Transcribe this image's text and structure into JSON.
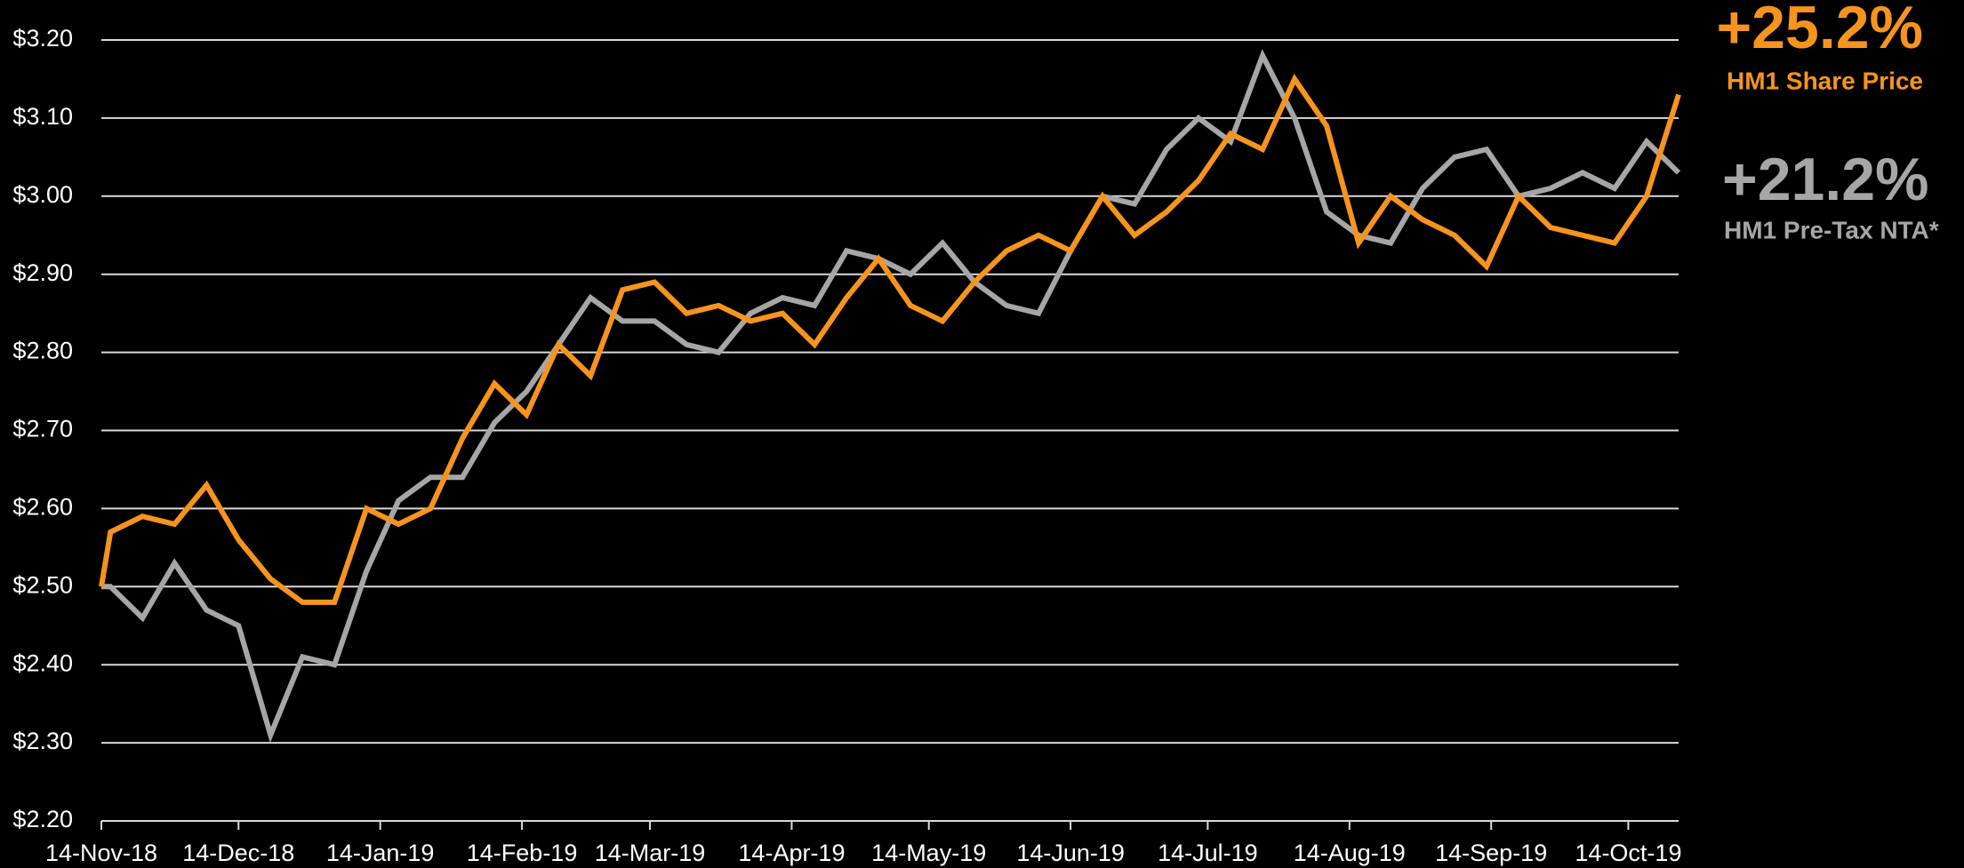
{
  "chart_data": {
    "type": "line",
    "x": [
      "2018-11-14",
      "2018-11-16",
      "2018-11-23",
      "2018-11-30",
      "2018-12-07",
      "2018-12-14",
      "2018-12-21",
      "2018-12-28",
      "2019-01-04",
      "2019-01-11",
      "2019-01-18",
      "2019-01-25",
      "2019-02-01",
      "2019-02-08",
      "2019-02-15",
      "2019-02-22",
      "2019-03-01",
      "2019-03-08",
      "2019-03-15",
      "2019-03-22",
      "2019-03-29",
      "2019-04-05",
      "2019-04-12",
      "2019-04-19",
      "2019-04-26",
      "2019-05-03",
      "2019-05-10",
      "2019-05-17",
      "2019-05-24",
      "2019-05-31",
      "2019-06-07",
      "2019-06-14",
      "2019-06-21",
      "2019-06-28",
      "2019-07-05",
      "2019-07-12",
      "2019-07-19",
      "2019-07-26",
      "2019-08-02",
      "2019-08-09",
      "2019-08-16",
      "2019-08-23",
      "2019-08-30",
      "2019-09-06",
      "2019-09-13",
      "2019-09-20",
      "2019-09-27",
      "2019-10-04",
      "2019-10-11",
      "2019-10-18",
      "2019-10-25"
    ],
    "series": [
      {
        "name": "HM1 Share Price",
        "change": "+25.2%",
        "color": "#f7941d",
        "values": [
          2.5,
          2.57,
          2.59,
          2.58,
          2.63,
          2.56,
          2.51,
          2.48,
          2.48,
          2.6,
          2.58,
          2.6,
          2.69,
          2.76,
          2.72,
          2.81,
          2.77,
          2.88,
          2.89,
          2.85,
          2.86,
          2.84,
          2.85,
          2.81,
          2.87,
          2.92,
          2.86,
          2.84,
          2.89,
          2.93,
          2.95,
          2.93,
          3.0,
          2.95,
          2.98,
          3.02,
          3.08,
          3.06,
          3.15,
          3.09,
          2.94,
          3.0,
          2.97,
          2.95,
          2.91,
          3.0,
          2.96,
          2.95,
          2.94,
          3.0,
          3.13
        ]
      },
      {
        "name": "HM1 Pre-Tax NTA*",
        "change": "+21.2%",
        "color": "#a6a6a6",
        "values": [
          2.5,
          2.5,
          2.46,
          2.53,
          2.47,
          2.45,
          2.31,
          2.41,
          2.4,
          2.52,
          2.61,
          2.64,
          2.64,
          2.71,
          2.75,
          2.81,
          2.87,
          2.84,
          2.84,
          2.81,
          2.8,
          2.85,
          2.87,
          2.86,
          2.93,
          2.92,
          2.9,
          2.94,
          2.89,
          2.86,
          2.85,
          2.93,
          3.0,
          2.99,
          3.06,
          3.1,
          3.07,
          3.18,
          3.1,
          2.98,
          2.95,
          2.94,
          3.01,
          3.05,
          3.06,
          3.0,
          3.01,
          3.03,
          3.01,
          3.07,
          3.03
        ]
      }
    ],
    "xlim": [
      "2018-11-14",
      "2019-10-25"
    ],
    "xticks": [
      {
        "value": "2018-11-14",
        "label": "14-Nov-18"
      },
      {
        "value": "2018-12-14",
        "label": "14-Dec-18"
      },
      {
        "value": "2019-01-14",
        "label": "14-Jan-19"
      },
      {
        "value": "2019-02-14",
        "label": "14-Feb-19"
      },
      {
        "value": "2019-03-14",
        "label": "14-Mar-19"
      },
      {
        "value": "2019-04-14",
        "label": "14-Apr-19"
      },
      {
        "value": "2019-05-14",
        "label": "14-May-19"
      },
      {
        "value": "2019-06-14",
        "label": "14-Jun-19"
      },
      {
        "value": "2019-07-14",
        "label": "14-Jul-19"
      },
      {
        "value": "2019-08-14",
        "label": "14-Aug-19"
      },
      {
        "value": "2019-09-14",
        "label": "14-Sep-19"
      },
      {
        "value": "2019-10-14",
        "label": "14-Oct-19"
      }
    ],
    "ylim": [
      2.2,
      3.2
    ],
    "yticks": [
      {
        "value": 2.2,
        "label": "$2.20"
      },
      {
        "value": 2.3,
        "label": "$2.30"
      },
      {
        "value": 2.4,
        "label": "$2.40"
      },
      {
        "value": 2.5,
        "label": "$2.50"
      },
      {
        "value": 2.6,
        "label": "$2.60"
      },
      {
        "value": 2.7,
        "label": "$2.70"
      },
      {
        "value": 2.8,
        "label": "$2.80"
      },
      {
        "value": 2.9,
        "label": "$2.90"
      },
      {
        "value": 3.0,
        "label": "$3.00"
      },
      {
        "value": 3.1,
        "label": "$3.10"
      },
      {
        "value": 3.2,
        "label": "$3.20"
      }
    ],
    "grid": true
  }
}
